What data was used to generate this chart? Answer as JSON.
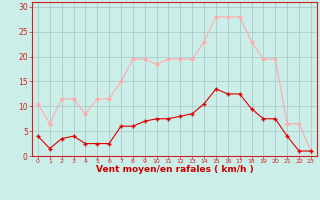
{
  "x": [
    0,
    1,
    2,
    3,
    4,
    5,
    6,
    7,
    8,
    9,
    10,
    11,
    12,
    13,
    14,
    15,
    16,
    17,
    18,
    19,
    20,
    21,
    22,
    23
  ],
  "avg_wind": [
    4,
    1.5,
    3.5,
    4,
    2.5,
    2.5,
    2.5,
    6,
    6,
    7,
    7.5,
    7.5,
    8,
    8.5,
    10.5,
    13.5,
    12.5,
    12.5,
    9.5,
    7.5,
    7.5,
    4,
    1,
    1
  ],
  "gust_wind": [
    10.5,
    6.5,
    11.5,
    11.5,
    8.5,
    11.5,
    11.5,
    15,
    19.5,
    19.5,
    18.5,
    19.5,
    19.5,
    19.5,
    23,
    28,
    28,
    28,
    23,
    19.5,
    19.5,
    6.5,
    6.5,
    1
  ],
  "avg_color": "#dd0000",
  "gust_color": "#ffaaaa",
  "bg_color": "#cceee8",
  "grid_color": "#aacccc",
  "xlabel": "Vent moyen/en rafales ( km/h )",
  "xlabel_color": "#cc0000",
  "ytick_labels": [
    "0",
    "5",
    "10",
    "15",
    "20",
    "25",
    "30"
  ],
  "ytick_vals": [
    0,
    5,
    10,
    15,
    20,
    25,
    30
  ],
  "ylim": [
    0,
    31
  ],
  "xlim": [
    -0.5,
    23.5
  ]
}
